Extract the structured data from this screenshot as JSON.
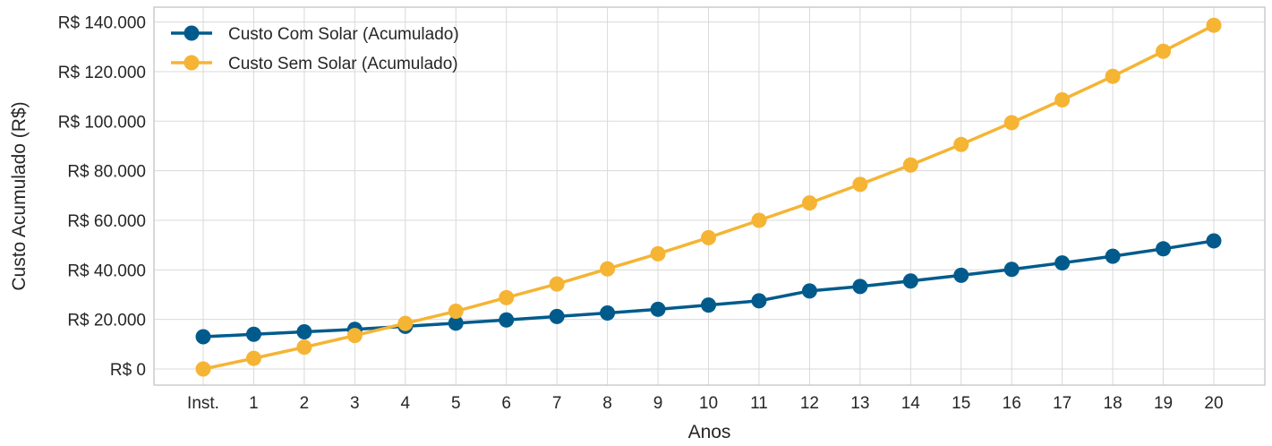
{
  "chart_data": {
    "type": "line",
    "title": "",
    "xlabel": "Anos",
    "ylabel": "Custo Acumulado (R$)",
    "categories": [
      "Inst.",
      "1",
      "2",
      "3",
      "4",
      "5",
      "6",
      "7",
      "8",
      "9",
      "10",
      "11",
      "12",
      "13",
      "14",
      "15",
      "16",
      "17",
      "18",
      "19",
      "20"
    ],
    "series": [
      {
        "name": "Custo Com Solar (Acumulado)",
        "color": "#005b8c",
        "values": [
          13000,
          14000,
          15000,
          16000,
          17200,
          18500,
          19800,
          21200,
          22600,
          24100,
          25800,
          27500,
          31500,
          33300,
          35500,
          37800,
          40200,
          42800,
          45500,
          48500,
          51700
        ]
      },
      {
        "name": "Custo Sem Solar (Acumulado)",
        "color": "#f5b434",
        "values": [
          0,
          4300,
          8800,
          13500,
          18400,
          23300,
          28800,
          34300,
          40400,
          46500,
          53000,
          60000,
          67000,
          74500,
          82300,
          90600,
          99400,
          108600,
          118100,
          128200,
          138700
        ]
      }
    ],
    "ylim": [
      -6500,
      146000
    ],
    "yticks": [
      0,
      20000,
      40000,
      60000,
      80000,
      100000,
      120000,
      140000
    ],
    "ytick_labels": [
      "R$ 0",
      "R$ 20.000",
      "R$ 40.000",
      "R$ 60.000",
      "R$ 80.000",
      "R$ 100.000",
      "R$ 120.000",
      "R$ 140.000"
    ],
    "grid": true,
    "legend_position": "top-left"
  }
}
